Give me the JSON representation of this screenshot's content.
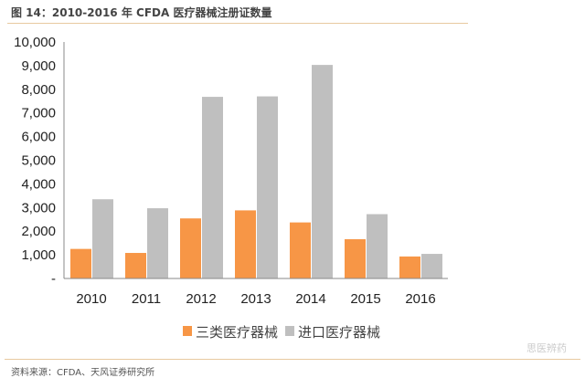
{
  "title": "图 14：2010-2016 年 CFDA 医疗器械注册证数量",
  "source": "资料来源：CFDA、天风证券研究所",
  "watermark": "思医辨药",
  "chart_data": {
    "type": "bar",
    "title": "",
    "xlabel": "",
    "ylabel": "",
    "categories": [
      "2010",
      "2011",
      "2012",
      "2013",
      "2014",
      "2015",
      "2016"
    ],
    "series": [
      {
        "name": "三类医疗器械",
        "color": "#F79646",
        "values": [
          1250,
          1080,
          2540,
          2880,
          2370,
          1660,
          930
        ]
      },
      {
        "name": "进口医疗器械",
        "color": "#BFBFBF",
        "values": [
          3350,
          2970,
          7680,
          7700,
          9030,
          2720,
          1040
        ]
      }
    ],
    "ylim": [
      0,
      10000
    ],
    "yticks": [
      0,
      1000,
      2000,
      3000,
      4000,
      5000,
      6000,
      7000,
      8000,
      9000,
      10000
    ],
    "ytick_labels": [
      "-",
      "1,000",
      "2,000",
      "3,000",
      "4,000",
      "5,000",
      "6,000",
      "7,000",
      "8,000",
      "9,000",
      "10,000"
    ],
    "grid": false,
    "legend": "bottom"
  }
}
